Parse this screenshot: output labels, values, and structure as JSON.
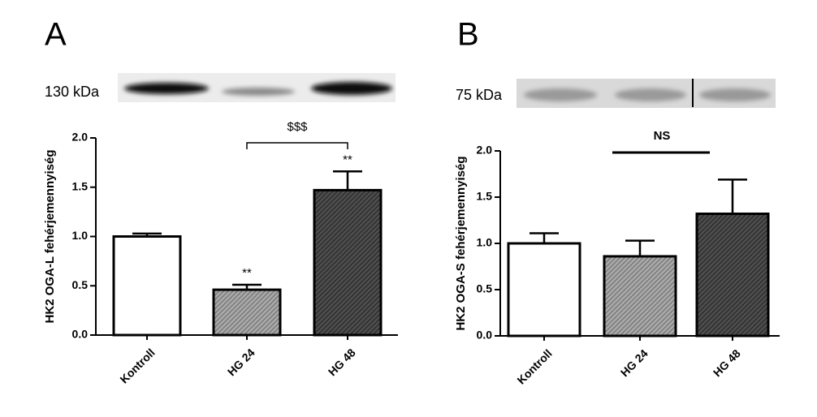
{
  "chart_data": [
    {
      "type": "bar",
      "panel_label": "A",
      "blot_label": "130 kDa",
      "y_label": "HK2 OGA-L fehérjemennyiség",
      "categories": [
        "Kontroll",
        "HG 24",
        "HG 48"
      ],
      "values": [
        1.0,
        0.46,
        1.47
      ],
      "errors": [
        0.03,
        0.05,
        0.19
      ],
      "colors": [
        "#ffffff",
        "#a8a8a8",
        "#4d4d4d"
      ],
      "bar_labels": [
        null,
        "**",
        "**"
      ],
      "comparison_label": "$$$",
      "ylim": [
        0,
        2.0
      ],
      "yticks": [
        {
          "value": 0,
          "label": "0.0"
        },
        0.5,
        {
          "value": 1,
          "label": "1.0"
        },
        1.5,
        {
          "value": 2,
          "label": "2.0"
        }
      ]
    },
    {
      "type": "bar",
      "panel_label": "B",
      "blot_label": "75 kDa",
      "y_label": "HK2 OGA-S fehérjemennyiség",
      "categories": [
        "Kontroll",
        "HG 24",
        "HG 48"
      ],
      "values": [
        1.0,
        0.86,
        1.32
      ],
      "errors": [
        0.11,
        0.17,
        0.37
      ],
      "colors": [
        "#ffffff",
        "#a8a8a8",
        "#4d4d4d"
      ],
      "bar_labels": [
        null,
        null,
        null
      ],
      "comparison_label": "NS",
      "ylim": [
        0,
        2.0
      ],
      "yticks": [
        {
          "value": 0,
          "label": "0.0"
        },
        0.5,
        {
          "value": 1,
          "label": "1.0"
        },
        1.5,
        {
          "value": 2,
          "label": "2.0"
        }
      ]
    }
  ]
}
